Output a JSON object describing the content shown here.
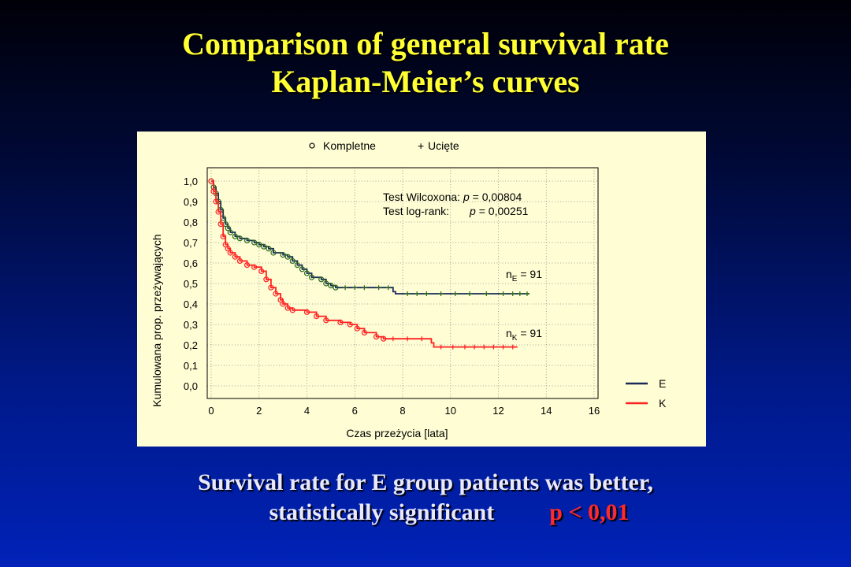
{
  "title": {
    "line1": "Comparison of general survival rate",
    "line2": "Kaplan-Meier’s curves"
  },
  "caption": {
    "line1": "Survival rate for E group patients was better,",
    "line2": "statistically significant",
    "p_value": "p < 0,01"
  },
  "colors": {
    "title": "#ffff33",
    "p_value": "#ff2a2a",
    "chart_bg": "#fefdd4",
    "series_E_line": "#1a2a5a",
    "series_E_marker": "#2a6a1a",
    "series_K": "#ff2020"
  },
  "chart_data": {
    "type": "line",
    "xlabel": "Czas przeżycia [lata]",
    "ylabel": "Kumulowana prop. przeżywających",
    "xlim": [
      0,
      16
    ],
    "ylim": [
      0,
      1.0
    ],
    "x_ticks": [
      "0",
      "2",
      "4",
      "6",
      "8",
      "10",
      "12",
      "14",
      "16"
    ],
    "y_ticks": [
      "0,0",
      "0,1",
      "0,2",
      "0,3",
      "0,4",
      "0,5",
      "0,6",
      "0,7",
      "0,8",
      "0,9",
      "1,0"
    ],
    "grid": true,
    "marker_legend": {
      "complete": "Kompletne",
      "censored": "Ucięte"
    },
    "legend_position": "bottom-right",
    "annotations": {
      "wilcoxon": "Test Wilcoxona: p = 0,00804",
      "logrank": "Test log-rank:     p = 0,00251",
      "n_E": "nE = 91",
      "n_K": "nK = 91"
    },
    "series": [
      {
        "name": "E",
        "points": [
          [
            0,
            1.0
          ],
          [
            0.1,
            0.97
          ],
          [
            0.2,
            0.94
          ],
          [
            0.3,
            0.9
          ],
          [
            0.4,
            0.86
          ],
          [
            0.5,
            0.82
          ],
          [
            0.6,
            0.79
          ],
          [
            0.7,
            0.77
          ],
          [
            0.8,
            0.75
          ],
          [
            1.0,
            0.73
          ],
          [
            1.2,
            0.72
          ],
          [
            1.5,
            0.71
          ],
          [
            1.8,
            0.7
          ],
          [
            2.0,
            0.69
          ],
          [
            2.2,
            0.68
          ],
          [
            2.4,
            0.67
          ],
          [
            2.6,
            0.65
          ],
          [
            3.0,
            0.64
          ],
          [
            3.2,
            0.63
          ],
          [
            3.4,
            0.61
          ],
          [
            3.6,
            0.59
          ],
          [
            3.8,
            0.57
          ],
          [
            4.0,
            0.55
          ],
          [
            4.2,
            0.53
          ],
          [
            4.6,
            0.52
          ],
          [
            4.8,
            0.5
          ],
          [
            5.0,
            0.49
          ],
          [
            5.2,
            0.48
          ],
          [
            7.6,
            0.46
          ],
          [
            7.7,
            0.45
          ],
          [
            13.3,
            0.45
          ]
        ],
        "censored_x": [
          5.6,
          6.0,
          6.4,
          7.0,
          7.4,
          8.2,
          8.6,
          9.0,
          9.6,
          10.2,
          10.8,
          11.5,
          12.2,
          12.6,
          12.9,
          13.2
        ]
      },
      {
        "name": "K",
        "points": [
          [
            0,
            1.0
          ],
          [
            0.1,
            0.95
          ],
          [
            0.2,
            0.9
          ],
          [
            0.3,
            0.85
          ],
          [
            0.4,
            0.79
          ],
          [
            0.5,
            0.73
          ],
          [
            0.6,
            0.69
          ],
          [
            0.7,
            0.67
          ],
          [
            0.8,
            0.65
          ],
          [
            1.0,
            0.63
          ],
          [
            1.2,
            0.61
          ],
          [
            1.5,
            0.59
          ],
          [
            1.8,
            0.58
          ],
          [
            2.1,
            0.56
          ],
          [
            2.3,
            0.52
          ],
          [
            2.5,
            0.48
          ],
          [
            2.7,
            0.45
          ],
          [
            2.9,
            0.42
          ],
          [
            3.0,
            0.4
          ],
          [
            3.2,
            0.38
          ],
          [
            3.4,
            0.37
          ],
          [
            4.0,
            0.36
          ],
          [
            4.4,
            0.34
          ],
          [
            4.8,
            0.32
          ],
          [
            5.4,
            0.31
          ],
          [
            5.8,
            0.3
          ],
          [
            6.1,
            0.28
          ],
          [
            6.4,
            0.26
          ],
          [
            6.9,
            0.24
          ],
          [
            7.2,
            0.23
          ],
          [
            9.2,
            0.21
          ],
          [
            9.3,
            0.19
          ],
          [
            12.8,
            0.19
          ]
        ],
        "censored_x": [
          7.6,
          8.2,
          8.8,
          9.6,
          10.1,
          10.6,
          11.0,
          11.4,
          11.8,
          12.2,
          12.6
        ]
      }
    ]
  }
}
